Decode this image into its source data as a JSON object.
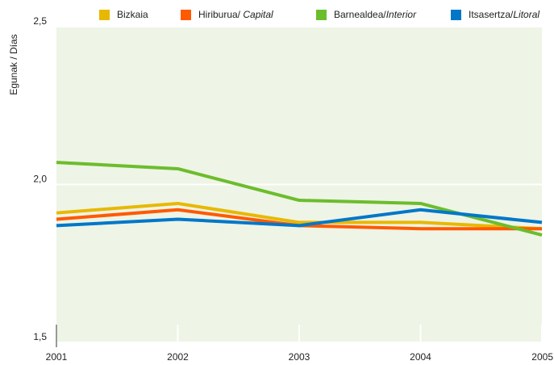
{
  "chart_data": {
    "type": "line",
    "y_label": "Egunak / Días",
    "x": [
      2001,
      2002,
      2003,
      2004,
      2005
    ],
    "xlim": [
      2001,
      2005
    ],
    "xticks": [
      2001,
      2002,
      2003,
      2004,
      2005
    ],
    "ylim": [
      1.5,
      2.5
    ],
    "yticks": [
      {
        "value": 1.5,
        "label": "1,5"
      },
      {
        "value": 2.0,
        "label": "2,0"
      },
      {
        "value": 2.5,
        "label": "2,5"
      }
    ],
    "grid": true,
    "legend": "top",
    "series": [
      {
        "name": "Bizkaia",
        "color": "#e8b800",
        "values": [
          1.91,
          1.94,
          1.88,
          1.88,
          1.86
        ]
      },
      {
        "name": "Hiriburua/ Capital",
        "color": "#ff5a00",
        "values": [
          1.89,
          1.92,
          1.87,
          1.86,
          1.86
        ]
      },
      {
        "name": "Barnealdea/Interior",
        "color": "#6cbd2c",
        "values": [
          2.07,
          2.05,
          1.95,
          1.94,
          1.84
        ]
      },
      {
        "name": "Itsasertza/Litoral",
        "color": "#0077c8",
        "values": [
          1.87,
          1.89,
          1.87,
          1.92,
          1.88
        ]
      }
    ]
  }
}
